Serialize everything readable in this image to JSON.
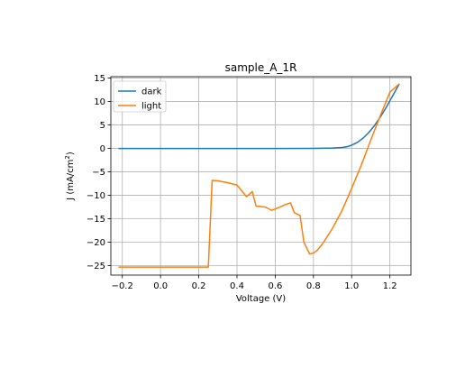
{
  "chart_data": {
    "type": "line",
    "title": "sample_A_1R",
    "xlabel": "Voltage (V)",
    "ylabel_main": "J (mA/cm",
    "ylabel_sup": "2",
    "ylabel_end": ")",
    "xlim": [
      -0.26,
      1.31
    ],
    "ylim": [
      -27.0,
      15.3
    ],
    "grid": true,
    "legend_position": "top-left",
    "x_ticks": [
      -0.2,
      0.0,
      0.2,
      0.4,
      0.6,
      0.8,
      1.0,
      1.2
    ],
    "x_tick_labels": [
      "−0.2",
      "0.0",
      "0.2",
      "0.4",
      "0.6",
      "0.8",
      "1.0",
      "1.2"
    ],
    "y_ticks": [
      -25,
      -20,
      -15,
      -10,
      -5,
      0,
      5,
      10,
      15
    ],
    "y_tick_labels": [
      "−25",
      "−20",
      "−15",
      "−10",
      "−5",
      "0",
      "5",
      "10",
      "15"
    ],
    "series": [
      {
        "name": "dark",
        "color": "#1f77b4",
        "x": [
          -0.22,
          -0.1,
          0.0,
          0.2,
          0.4,
          0.6,
          0.8,
          0.9,
          0.95,
          0.98,
          1.0,
          1.03,
          1.06,
          1.09,
          1.12,
          1.15,
          1.18,
          1.21,
          1.25
        ],
        "y": [
          0,
          0,
          0,
          0,
          0,
          0,
          0.02,
          0.08,
          0.2,
          0.4,
          0.7,
          1.3,
          2.2,
          3.4,
          4.9,
          6.7,
          8.7,
          10.9,
          13.8
        ]
      },
      {
        "name": "light",
        "color": "#ff7f0e",
        "x": [
          -0.22,
          0.0,
          0.2,
          0.25,
          0.27,
          0.3,
          0.35,
          0.4,
          0.45,
          0.48,
          0.5,
          0.55,
          0.58,
          0.6,
          0.63,
          0.65,
          0.68,
          0.7,
          0.73,
          0.75,
          0.78,
          0.8,
          0.82,
          0.85,
          0.9,
          0.95,
          1.0,
          1.05,
          1.1,
          1.15,
          1.2,
          1.25
        ],
        "y": [
          -25.3,
          -25.3,
          -25.3,
          -25.3,
          -6.8,
          -6.9,
          -7.3,
          -7.8,
          -10.3,
          -9.2,
          -12.3,
          -12.5,
          -13.2,
          -12.9,
          -12.4,
          -12.0,
          -11.6,
          -13.7,
          -14.3,
          -20.0,
          -22.5,
          -22.3,
          -21.7,
          -20.2,
          -17.0,
          -13.2,
          -8.5,
          -3.6,
          1.8,
          7.0,
          12.0,
          13.8
        ]
      }
    ]
  }
}
